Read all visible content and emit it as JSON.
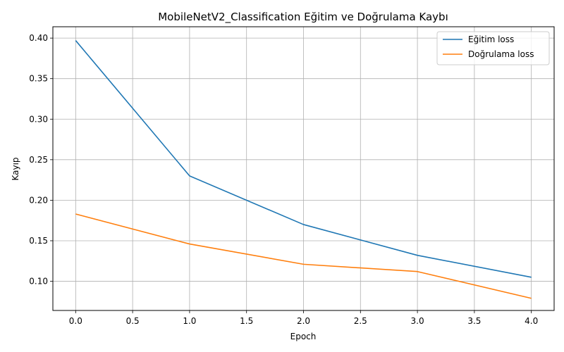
{
  "chart_data": {
    "type": "line",
    "title": "MobileNetV2_Classification Eğitim ve Doğrulama Kaybı",
    "xlabel": "Epoch",
    "ylabel": "Kayıp",
    "xlim": [
      -0.2,
      4.2
    ],
    "ylim": [
      0.064,
      0.414
    ],
    "xticks": [
      0.0,
      0.5,
      1.0,
      1.5,
      2.0,
      2.5,
      3.0,
      3.5,
      4.0
    ],
    "xtick_labels": [
      "0.0",
      "0.5",
      "1.0",
      "1.5",
      "2.0",
      "2.5",
      "3.0",
      "3.5",
      "4.0"
    ],
    "yticks": [
      0.1,
      0.15,
      0.2,
      0.25,
      0.3,
      0.35,
      0.4
    ],
    "ytick_labels": [
      "0.10",
      "0.15",
      "0.20",
      "0.25",
      "0.30",
      "0.35",
      "0.40"
    ],
    "grid": true,
    "legend_position": "top-right",
    "x": [
      0,
      1,
      2,
      3,
      4
    ],
    "series": [
      {
        "name": "Eğitim loss",
        "color": "#1f77b4",
        "values": [
          0.397,
          0.23,
          0.17,
          0.132,
          0.105
        ]
      },
      {
        "name": "Doğrulama loss",
        "color": "#ff7f0e",
        "values": [
          0.183,
          0.146,
          0.121,
          0.112,
          0.079
        ]
      }
    ]
  }
}
